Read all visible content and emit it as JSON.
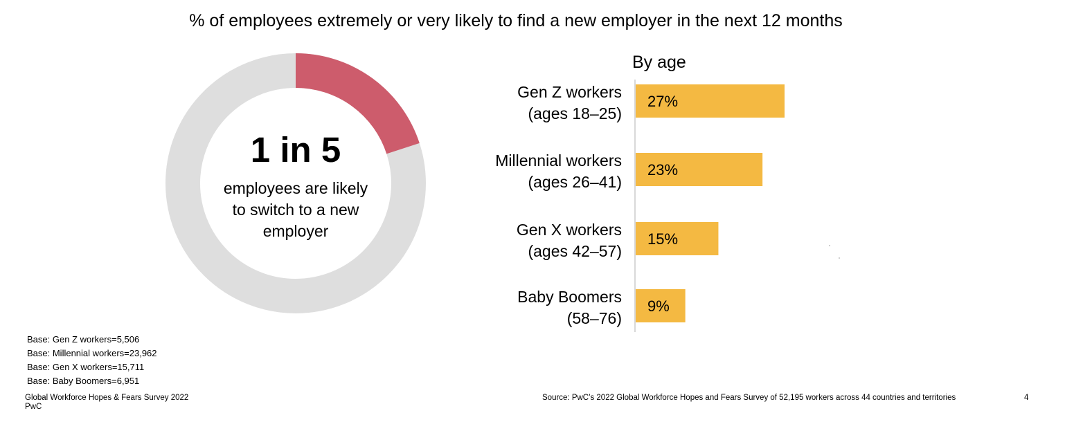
{
  "title": "% of employees extremely or very likely to find a new employer in the next 12 months",
  "donut": {
    "share": 0.2,
    "stat": "1 in 5",
    "text_lines": [
      "employees are likely",
      "to switch to a new",
      "employer"
    ]
  },
  "chart_data": [
    {
      "type": "pie",
      "title": "",
      "values": [
        20,
        80
      ],
      "colors": [
        "#cd5c6c",
        "#dedede"
      ]
    },
    {
      "type": "bar",
      "orientation": "horizontal",
      "title": "By age",
      "categories": [
        [
          "Gen Z workers",
          "(ages 18–25)"
        ],
        [
          "Millennial workers",
          "(ages 26–41)"
        ],
        [
          "Gen X workers",
          "(ages 42–57)"
        ],
        [
          "Baby Boomers",
          "(58–76)"
        ]
      ],
      "values": [
        27,
        23,
        15,
        9
      ],
      "data_labels": [
        "27%",
        "23%",
        "15%",
        "9%"
      ],
      "xlim": [
        0,
        27
      ],
      "axis": "left baseline only",
      "grid": false,
      "legend": "none"
    }
  ],
  "colors": {
    "accent": "#cd5c6c",
    "track": "#dedede",
    "bar": "#f4b942",
    "axis": "#bfbfbf",
    "text": "#000000"
  },
  "footnotes": {
    "bases": [
      "Base: Gen Z workers=5,506",
      "Base: Millennial workers=23,962",
      "Base: Gen X workers=15,711",
      "Base: Baby Boomers=6,951"
    ],
    "survey_lines": [
      "Global Workforce Hopes & Fears Survey 2022",
      "PwC"
    ],
    "source": "Source: PwC’s 2022 Global Workforce Hopes and Fears Survey of 52,195 workers across 44 countries and territories",
    "page": "4"
  }
}
